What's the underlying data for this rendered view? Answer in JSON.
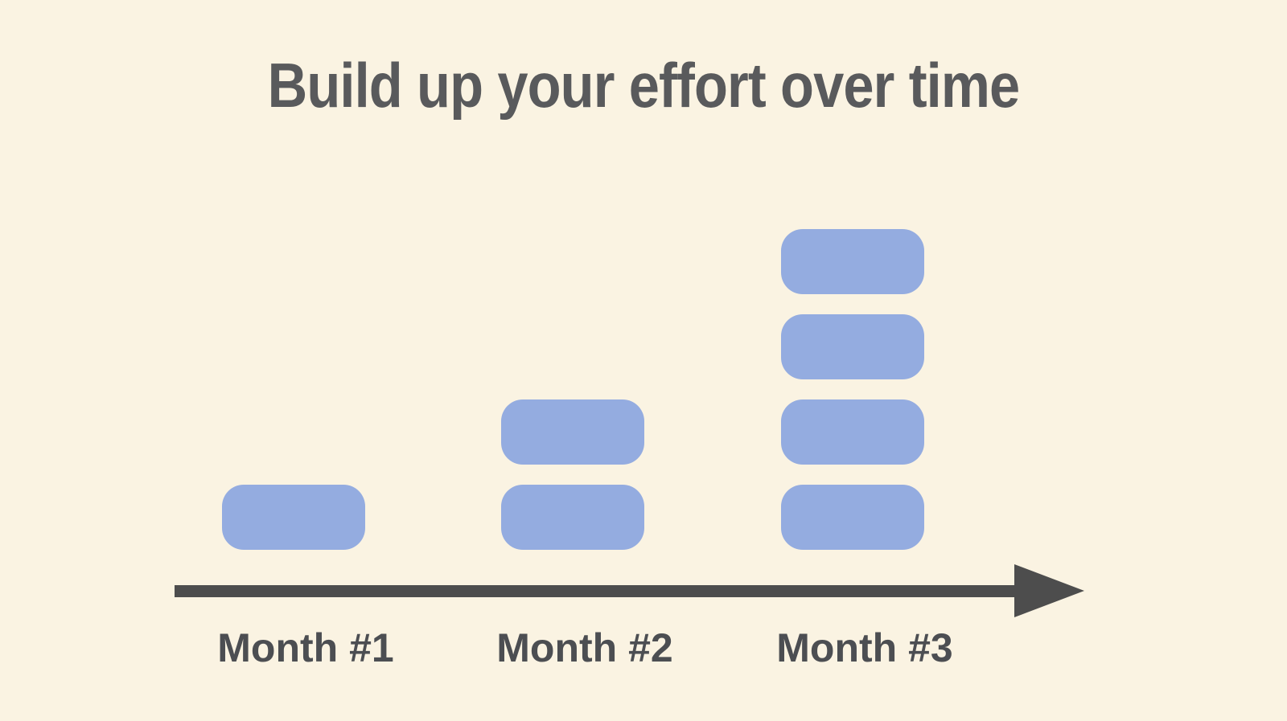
{
  "title": "Build up your effort over time",
  "colors": {
    "background": "#FAF3E2",
    "block": "#94ACE0",
    "arrow": "#4D4D4D",
    "title_text": "#595A5C",
    "label_text": "#4C4E52"
  },
  "chart_data": {
    "type": "bar",
    "title": "Build up your effort over time",
    "categories": [
      "Month #1",
      "Month #2",
      "Month #3"
    ],
    "values": [
      1,
      2,
      4
    ],
    "unit": "effort blocks",
    "xlabel": "",
    "ylabel": "",
    "ylim": [
      0,
      4
    ],
    "grid": false,
    "legend": false,
    "axis_style": "single horizontal arrow axis, no ticks, no y-axis",
    "bar_style": "each unit drawn as separate rounded rectangle block stacked with gaps"
  }
}
